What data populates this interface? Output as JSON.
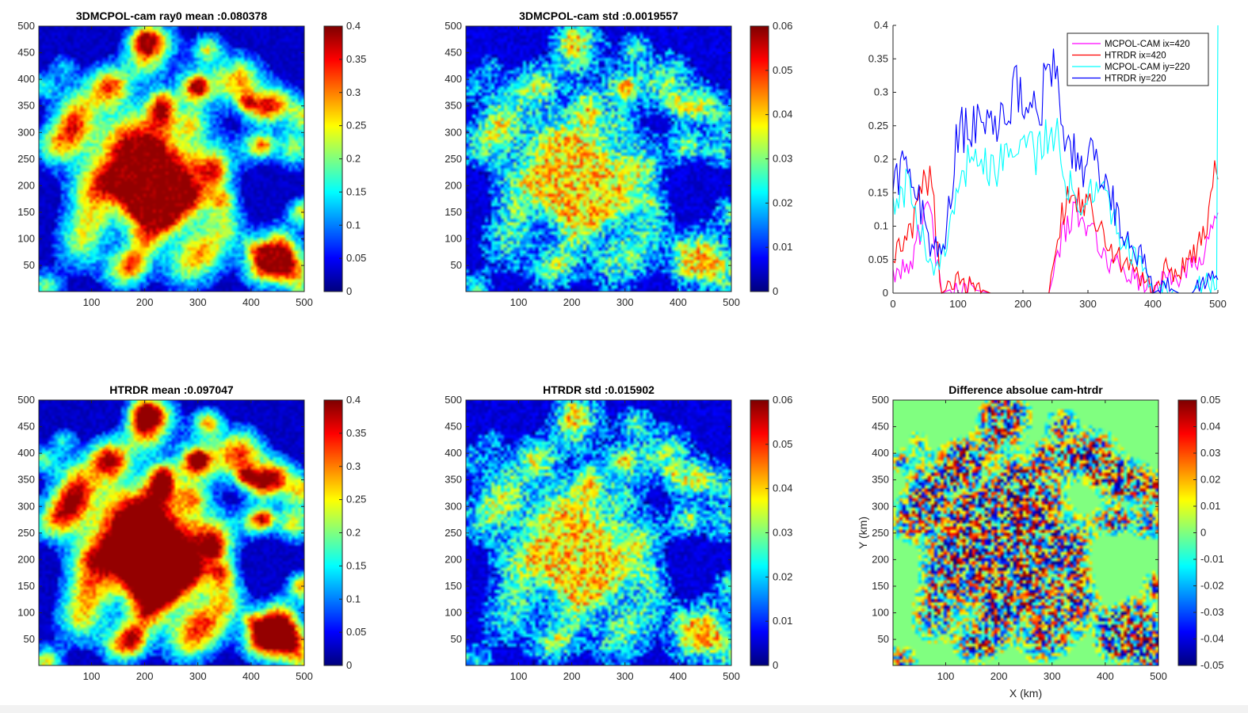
{
  "figure": {
    "colors": {
      "jet_low": "#00008f",
      "jet_high": "#800000",
      "diff_zero": "#7fff7f",
      "magenta": "#ff00ff",
      "red": "#ff0000",
      "cyan": "#00ffff",
      "blue": "#0000ff"
    }
  },
  "chart_data": [
    {
      "id": "map-cam-mean",
      "type": "heatmap",
      "title": "3DMCPOL-cam ray0 mean :0.080378",
      "xlim": [
        1,
        500
      ],
      "ylim": [
        1,
        500
      ],
      "xticks": [
        "100",
        "200",
        "300",
        "400",
        "500"
      ],
      "yticks": [
        "50",
        "100",
        "150",
        "200",
        "250",
        "300",
        "350",
        "400",
        "450",
        "500"
      ],
      "colorbar": {
        "range": [
          0,
          0.4
        ],
        "ticks": [
          "0",
          "0.05",
          "0.1",
          "0.15",
          "0.2",
          "0.25",
          "0.3",
          "0.35",
          "0.4"
        ]
      },
      "colormap": "jet"
    },
    {
      "id": "map-cam-std",
      "type": "heatmap",
      "title": "3DMCPOL-cam std :0.0019557",
      "xlim": [
        1,
        500
      ],
      "ylim": [
        1,
        500
      ],
      "xticks": [
        "100",
        "200",
        "300",
        "400",
        "500"
      ],
      "yticks": [
        "50",
        "100",
        "150",
        "200",
        "250",
        "300",
        "350",
        "400",
        "450",
        "500"
      ],
      "colorbar": {
        "range": [
          0,
          0.06
        ],
        "ticks": [
          "0",
          "0.01",
          "0.02",
          "0.03",
          "0.04",
          "0.05",
          "0.06"
        ]
      },
      "colormap": "jet"
    },
    {
      "id": "profiles",
      "type": "line",
      "title": "",
      "xlim": [
        0,
        500
      ],
      "ylim": [
        0,
        0.4
      ],
      "xticks": [
        "0",
        "100",
        "200",
        "300",
        "400",
        "500"
      ],
      "yticks": [
        "0",
        "0.05",
        "0.1",
        "0.15",
        "0.2",
        "0.25",
        "0.3",
        "0.35",
        "0.4"
      ],
      "legend_placement": "top-right",
      "series": [
        {
          "name": "MCPOL-CAM ix=420",
          "color": "#ff00ff",
          "x": [
            0,
            30,
            50,
            60,
            75,
            100,
            150,
            200,
            240,
            250,
            260,
            280,
            300,
            330,
            360,
            390,
            400,
            420,
            440,
            460,
            480,
            495,
            500
          ],
          "y": [
            0.03,
            0.05,
            0.12,
            0.1,
            0.0,
            0.01,
            0.0,
            0.0,
            0.0,
            0.04,
            0.09,
            0.12,
            0.1,
            0.05,
            0.03,
            0.01,
            0.0,
            0.03,
            0.02,
            0.04,
            0.06,
            0.13,
            0.12
          ]
        },
        {
          "name": "HTRDR ix=420",
          "color": "#ff0000",
          "x": [
            0,
            30,
            50,
            60,
            75,
            100,
            150,
            200,
            240,
            250,
            260,
            280,
            300,
            330,
            360,
            390,
            400,
            420,
            440,
            460,
            480,
            495,
            500
          ],
          "y": [
            0.06,
            0.09,
            0.19,
            0.15,
            0.0,
            0.02,
            0.0,
            0.0,
            0.0,
            0.05,
            0.12,
            0.15,
            0.13,
            0.07,
            0.04,
            0.02,
            0.0,
            0.04,
            0.03,
            0.05,
            0.09,
            0.19,
            0.17
          ]
        },
        {
          "name": "MCPOL-CAM iy=220",
          "color": "#00ffff",
          "x": [
            0,
            20,
            40,
            60,
            80,
            100,
            130,
            160,
            190,
            220,
            250,
            270,
            290,
            310,
            330,
            350,
            370,
            390,
            400,
            420,
            440,
            460,
            480,
            498,
            500
          ],
          "y": [
            0.12,
            0.16,
            0.11,
            0.04,
            0.06,
            0.18,
            0.2,
            0.19,
            0.23,
            0.21,
            0.24,
            0.16,
            0.14,
            0.17,
            0.14,
            0.08,
            0.06,
            0.03,
            0.0,
            0.01,
            0.0,
            0.0,
            0.02,
            0.01,
            0.4
          ]
        },
        {
          "name": "HTRDR iy=220",
          "color": "#0000ff",
          "x": [
            0,
            20,
            40,
            60,
            80,
            100,
            130,
            160,
            190,
            220,
            250,
            270,
            290,
            310,
            330,
            350,
            370,
            390,
            400,
            420,
            440,
            460,
            480,
            500
          ],
          "y": [
            0.15,
            0.2,
            0.14,
            0.06,
            0.08,
            0.24,
            0.25,
            0.26,
            0.3,
            0.28,
            0.33,
            0.22,
            0.19,
            0.2,
            0.16,
            0.1,
            0.07,
            0.04,
            0.0,
            0.01,
            0.0,
            0.0,
            0.02,
            0.02
          ]
        }
      ]
    },
    {
      "id": "map-htrdr-mean",
      "type": "heatmap",
      "title": "HTRDR mean :0.097047",
      "xlim": [
        1,
        500
      ],
      "ylim": [
        1,
        500
      ],
      "xticks": [
        "100",
        "200",
        "300",
        "400",
        "500"
      ],
      "yticks": [
        "50",
        "100",
        "150",
        "200",
        "250",
        "300",
        "350",
        "400",
        "450",
        "500"
      ],
      "colorbar": {
        "range": [
          0,
          0.4
        ],
        "ticks": [
          "0",
          "0.05",
          "0.1",
          "0.15",
          "0.2",
          "0.25",
          "0.3",
          "0.35",
          "0.4"
        ]
      },
      "colormap": "jet"
    },
    {
      "id": "map-htrdr-std",
      "type": "heatmap",
      "title": "HTRDR std :0.015902",
      "xlim": [
        1,
        500
      ],
      "ylim": [
        1,
        500
      ],
      "xticks": [
        "100",
        "200",
        "300",
        "400",
        "500"
      ],
      "yticks": [
        "50",
        "100",
        "150",
        "200",
        "250",
        "300",
        "350",
        "400",
        "450",
        "500"
      ],
      "colorbar": {
        "range": [
          0,
          0.06
        ],
        "ticks": [
          "0",
          "0.01",
          "0.02",
          "0.03",
          "0.04",
          "0.05",
          "0.06"
        ]
      },
      "colormap": "jet"
    },
    {
      "id": "map-difference",
      "type": "heatmap",
      "title": "Difference absolue cam-htrdr",
      "xlabel": "X (km)",
      "ylabel": "Y (km)",
      "xlim": [
        1,
        500
      ],
      "ylim": [
        1,
        500
      ],
      "xticks": [
        "100",
        "200",
        "300",
        "400",
        "500"
      ],
      "yticks": [
        "50",
        "100",
        "150",
        "200",
        "250",
        "300",
        "350",
        "400",
        "450",
        "500"
      ],
      "colorbar": {
        "range": [
          -0.05,
          0.05
        ],
        "ticks": [
          "-0.05",
          "-0.04",
          "-0.03",
          "-0.02",
          "-0.01",
          "0",
          "0.01",
          "0.02",
          "0.03",
          "0.04",
          "0.05"
        ]
      },
      "colormap": "jet"
    }
  ]
}
